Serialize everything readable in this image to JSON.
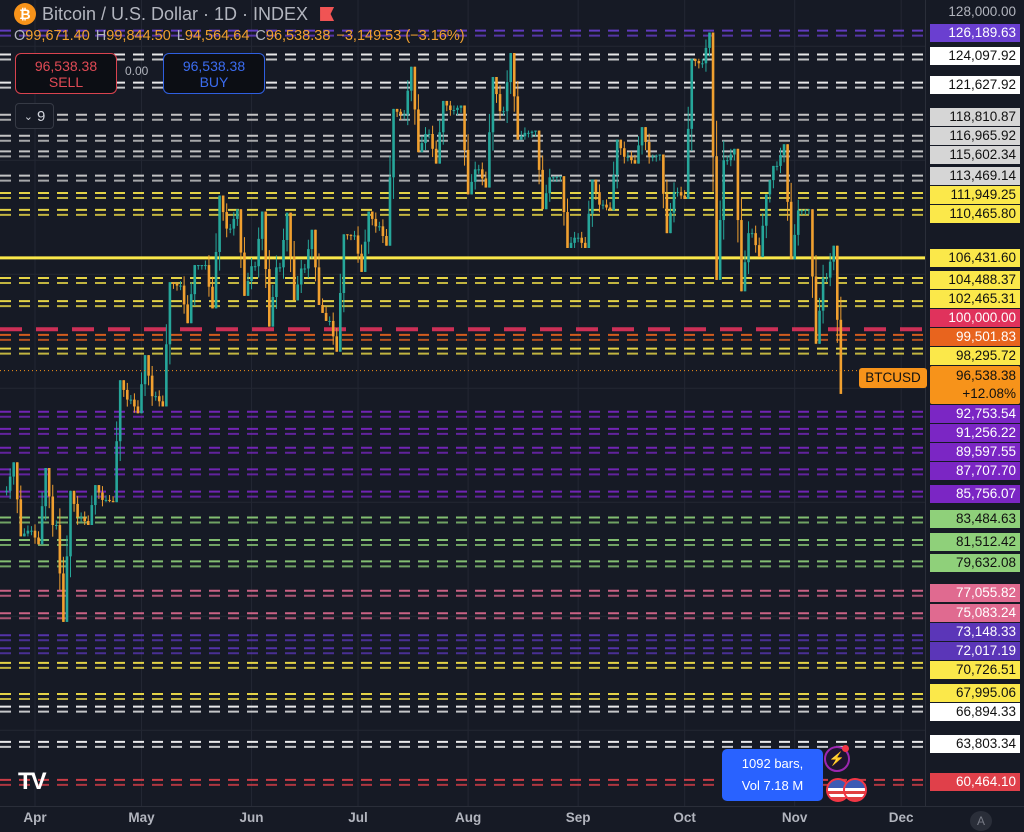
{
  "header": {
    "title": "Bitcoin / U.S. Dollar · 1D · INDEX",
    "symbol_icon": "bitcoin-icon",
    "ohlc": {
      "o_label": "O",
      "o": "99,671.40",
      "h_label": "H",
      "h": "99,844.50",
      "l_label": "L",
      "l": "94,564.64",
      "c_label": "C",
      "c": "96,538.38",
      "change": "−3,149.53 (−3.16%)"
    }
  },
  "trade": {
    "sell_price": "96,538.38",
    "sell_label": "SELL",
    "spread": "0.00",
    "buy_price": "96,538.38",
    "buy_label": "BUY"
  },
  "indicators_collapse": {
    "count": "9"
  },
  "current": {
    "symbol": "BTCUSD",
    "price": "96,538.38",
    "change": "+12.08%",
    "color": "#f7931a"
  },
  "info": {
    "bars": "1092 bars,",
    "vol": "Vol 7.18 M"
  },
  "axis_button": "A",
  "colors": {
    "background": "#161a25",
    "up": "#26a69a",
    "down": "#f0a030"
  },
  "chart_data": {
    "type": "candlestick",
    "interval": "1D",
    "y_axis_top_label": "128,000.00",
    "ylim": [
      60000,
      128000
    ],
    "x_ticks": [
      "Apr",
      "May",
      "Jun",
      "Jul",
      "Aug",
      "Sep",
      "Oct",
      "Nov",
      "Dec"
    ],
    "weekly_ohlc": [
      [
        "2025-03-24",
        86000,
        88500,
        82000,
        82500
      ],
      [
        "2025-03-31",
        82500,
        88000,
        81300,
        83000
      ],
      [
        "2025-04-07",
        83000,
        86000,
        74500,
        83700
      ],
      [
        "2025-04-14",
        83700,
        86500,
        83000,
        85200
      ],
      [
        "2025-04-21",
        85200,
        95700,
        85000,
        94000
      ],
      [
        "2025-04-28",
        94000,
        97900,
        92800,
        94300
      ],
      [
        "2025-05-05",
        94300,
        104300,
        93400,
        104000
      ],
      [
        "2025-05-12",
        104000,
        105800,
        100700,
        105800
      ],
      [
        "2025-05-19",
        105800,
        111900,
        102000,
        109000
      ],
      [
        "2025-05-26",
        109000,
        110700,
        103100,
        105700
      ],
      [
        "2025-06-02",
        105700,
        110500,
        100400,
        105600
      ],
      [
        "2025-06-09",
        105600,
        110400,
        102700,
        105500
      ],
      [
        "2025-06-16",
        105500,
        108900,
        102300,
        100900
      ],
      [
        "2025-06-23",
        100900,
        108500,
        98200,
        108400
      ],
      [
        "2025-06-30",
        108400,
        110500,
        105200,
        109200
      ],
      [
        "2025-07-07",
        109200,
        119500,
        107500,
        119000
      ],
      [
        "2025-07-14",
        119000,
        123200,
        115700,
        117300
      ],
      [
        "2025-07-21",
        117300,
        120200,
        114700,
        119400
      ],
      [
        "2025-07-28",
        119400,
        119800,
        112000,
        114200
      ],
      [
        "2025-08-04",
        114200,
        122300,
        112600,
        119300
      ],
      [
        "2025-08-11",
        119300,
        124400,
        116800,
        117400
      ],
      [
        "2025-08-18",
        117400,
        117600,
        110700,
        113500
      ],
      [
        "2025-08-25",
        113500,
        113600,
        107300,
        108200
      ],
      [
        "2025-09-01",
        108200,
        113300,
        107300,
        111100
      ],
      [
        "2025-09-08",
        111100,
        116800,
        110600,
        115300
      ],
      [
        "2025-09-15",
        115300,
        117900,
        114700,
        115300
      ],
      [
        "2025-09-22",
        115300,
        115500,
        108600,
        112200
      ],
      [
        "2025-09-29",
        112200,
        123900,
        111600,
        123500
      ],
      [
        "2025-10-06",
        123500,
        126200,
        104500,
        115000
      ],
      [
        "2025-10-13",
        115000,
        116000,
        103500,
        108600
      ],
      [
        "2025-10-20",
        108600,
        112000,
        106500,
        114500
      ],
      [
        "2025-10-27",
        114500,
        116400,
        106300,
        110600
      ],
      [
        "2025-11-03",
        110600,
        110700,
        98900,
        104700
      ],
      [
        "2025-11-10",
        104700,
        107500,
        94500,
        96538.38
      ]
    ],
    "levels": [
      {
        "price": 126189.63,
        "label": "126,189.63",
        "color": "#6a3fd0",
        "text": "#ffffff"
      },
      {
        "price": 124097.92,
        "label": "124,097.92",
        "color": "#ffffff",
        "text": "#111111"
      },
      {
        "price": 121627.92,
        "label": "121,627.92",
        "color": "#ffffff",
        "text": "#111111"
      },
      {
        "price": 118810.87,
        "label": "118,810.87",
        "color": "#d6d6d6",
        "text": "#111111"
      },
      {
        "price": 116965.92,
        "label": "116,965.92",
        "color": "#d6d6d6",
        "text": "#111111"
      },
      {
        "price": 115602.34,
        "label": "115,602.34",
        "color": "#d6d6d6",
        "text": "#111111"
      },
      {
        "price": 113469.14,
        "label": "113,469.14",
        "color": "#d6d6d6",
        "text": "#111111"
      },
      {
        "price": 111949.25,
        "label": "111,949.25",
        "color": "#fbe84a",
        "text": "#111111"
      },
      {
        "price": 110465.8,
        "label": "110,465.80",
        "color": "#fbe84a",
        "text": "#111111"
      },
      {
        "price": 106431.6,
        "label": "106,431.60",
        "color": "#fbe84a",
        "text": "#111111",
        "solid": true
      },
      {
        "price": 104488.37,
        "label": "104,488.37",
        "color": "#fbe84a",
        "text": "#111111"
      },
      {
        "price": 102465.31,
        "label": "102,465.31",
        "color": "#fbe84a",
        "text": "#111111"
      },
      {
        "price": 100000.0,
        "label": "100,000.00",
        "color": "#e0325c",
        "text": "#ffffff",
        "thick": true
      },
      {
        "price": 99501.83,
        "label": "99,501.83",
        "color": "#e8641e",
        "text": "#ffffff"
      },
      {
        "price": 98295.72,
        "label": "98,295.72",
        "color": "#fbe84a",
        "text": "#111111"
      },
      {
        "price": 92753.54,
        "label": "92,753.54",
        "color": "#7b26c4",
        "text": "#ffffff"
      },
      {
        "price": 91256.22,
        "label": "91,256.22",
        "color": "#7b26c4",
        "text": "#ffffff"
      },
      {
        "price": 89597.55,
        "label": "89,597.55",
        "color": "#7b26c4",
        "text": "#ffffff"
      },
      {
        "price": 87707.7,
        "label": "87,707.70",
        "color": "#7b26c4",
        "text": "#ffffff"
      },
      {
        "price": 85756.07,
        "label": "85,756.07",
        "color": "#7b26c4",
        "text": "#ffffff"
      },
      {
        "price": 83484.63,
        "label": "83,484.63",
        "color": "#8fd07a",
        "text": "#111111"
      },
      {
        "price": 81512.42,
        "label": "81,512.42",
        "color": "#8fd07a",
        "text": "#111111"
      },
      {
        "price": 79632.08,
        "label": "79,632.08",
        "color": "#8fd07a",
        "text": "#111111"
      },
      {
        "price": 77055.82,
        "label": "77,055.82",
        "color": "#e06a90",
        "text": "#ffffff"
      },
      {
        "price": 75083.24,
        "label": "75,083.24",
        "color": "#e06a90",
        "text": "#ffffff"
      },
      {
        "price": 73148.33,
        "label": "73,148.33",
        "color": "#5b36b8",
        "text": "#ffffff"
      },
      {
        "price": 72017.19,
        "label": "72,017.19",
        "color": "#5b36b8",
        "text": "#ffffff"
      },
      {
        "price": 70726.51,
        "label": "70,726.51",
        "color": "#fbe84a",
        "text": "#111111"
      },
      {
        "price": 67995.06,
        "label": "67,995.06",
        "color": "#fbe84a",
        "text": "#111111"
      },
      {
        "price": 66894.33,
        "label": "66,894.33",
        "color": "#ffffff",
        "text": "#111111"
      },
      {
        "price": 63803.34,
        "label": "63,803.34",
        "color": "#ffffff",
        "text": "#111111"
      },
      {
        "price": 60464.1,
        "label": "60,464.10",
        "color": "#e0404a",
        "text": "#ffffff"
      }
    ]
  }
}
